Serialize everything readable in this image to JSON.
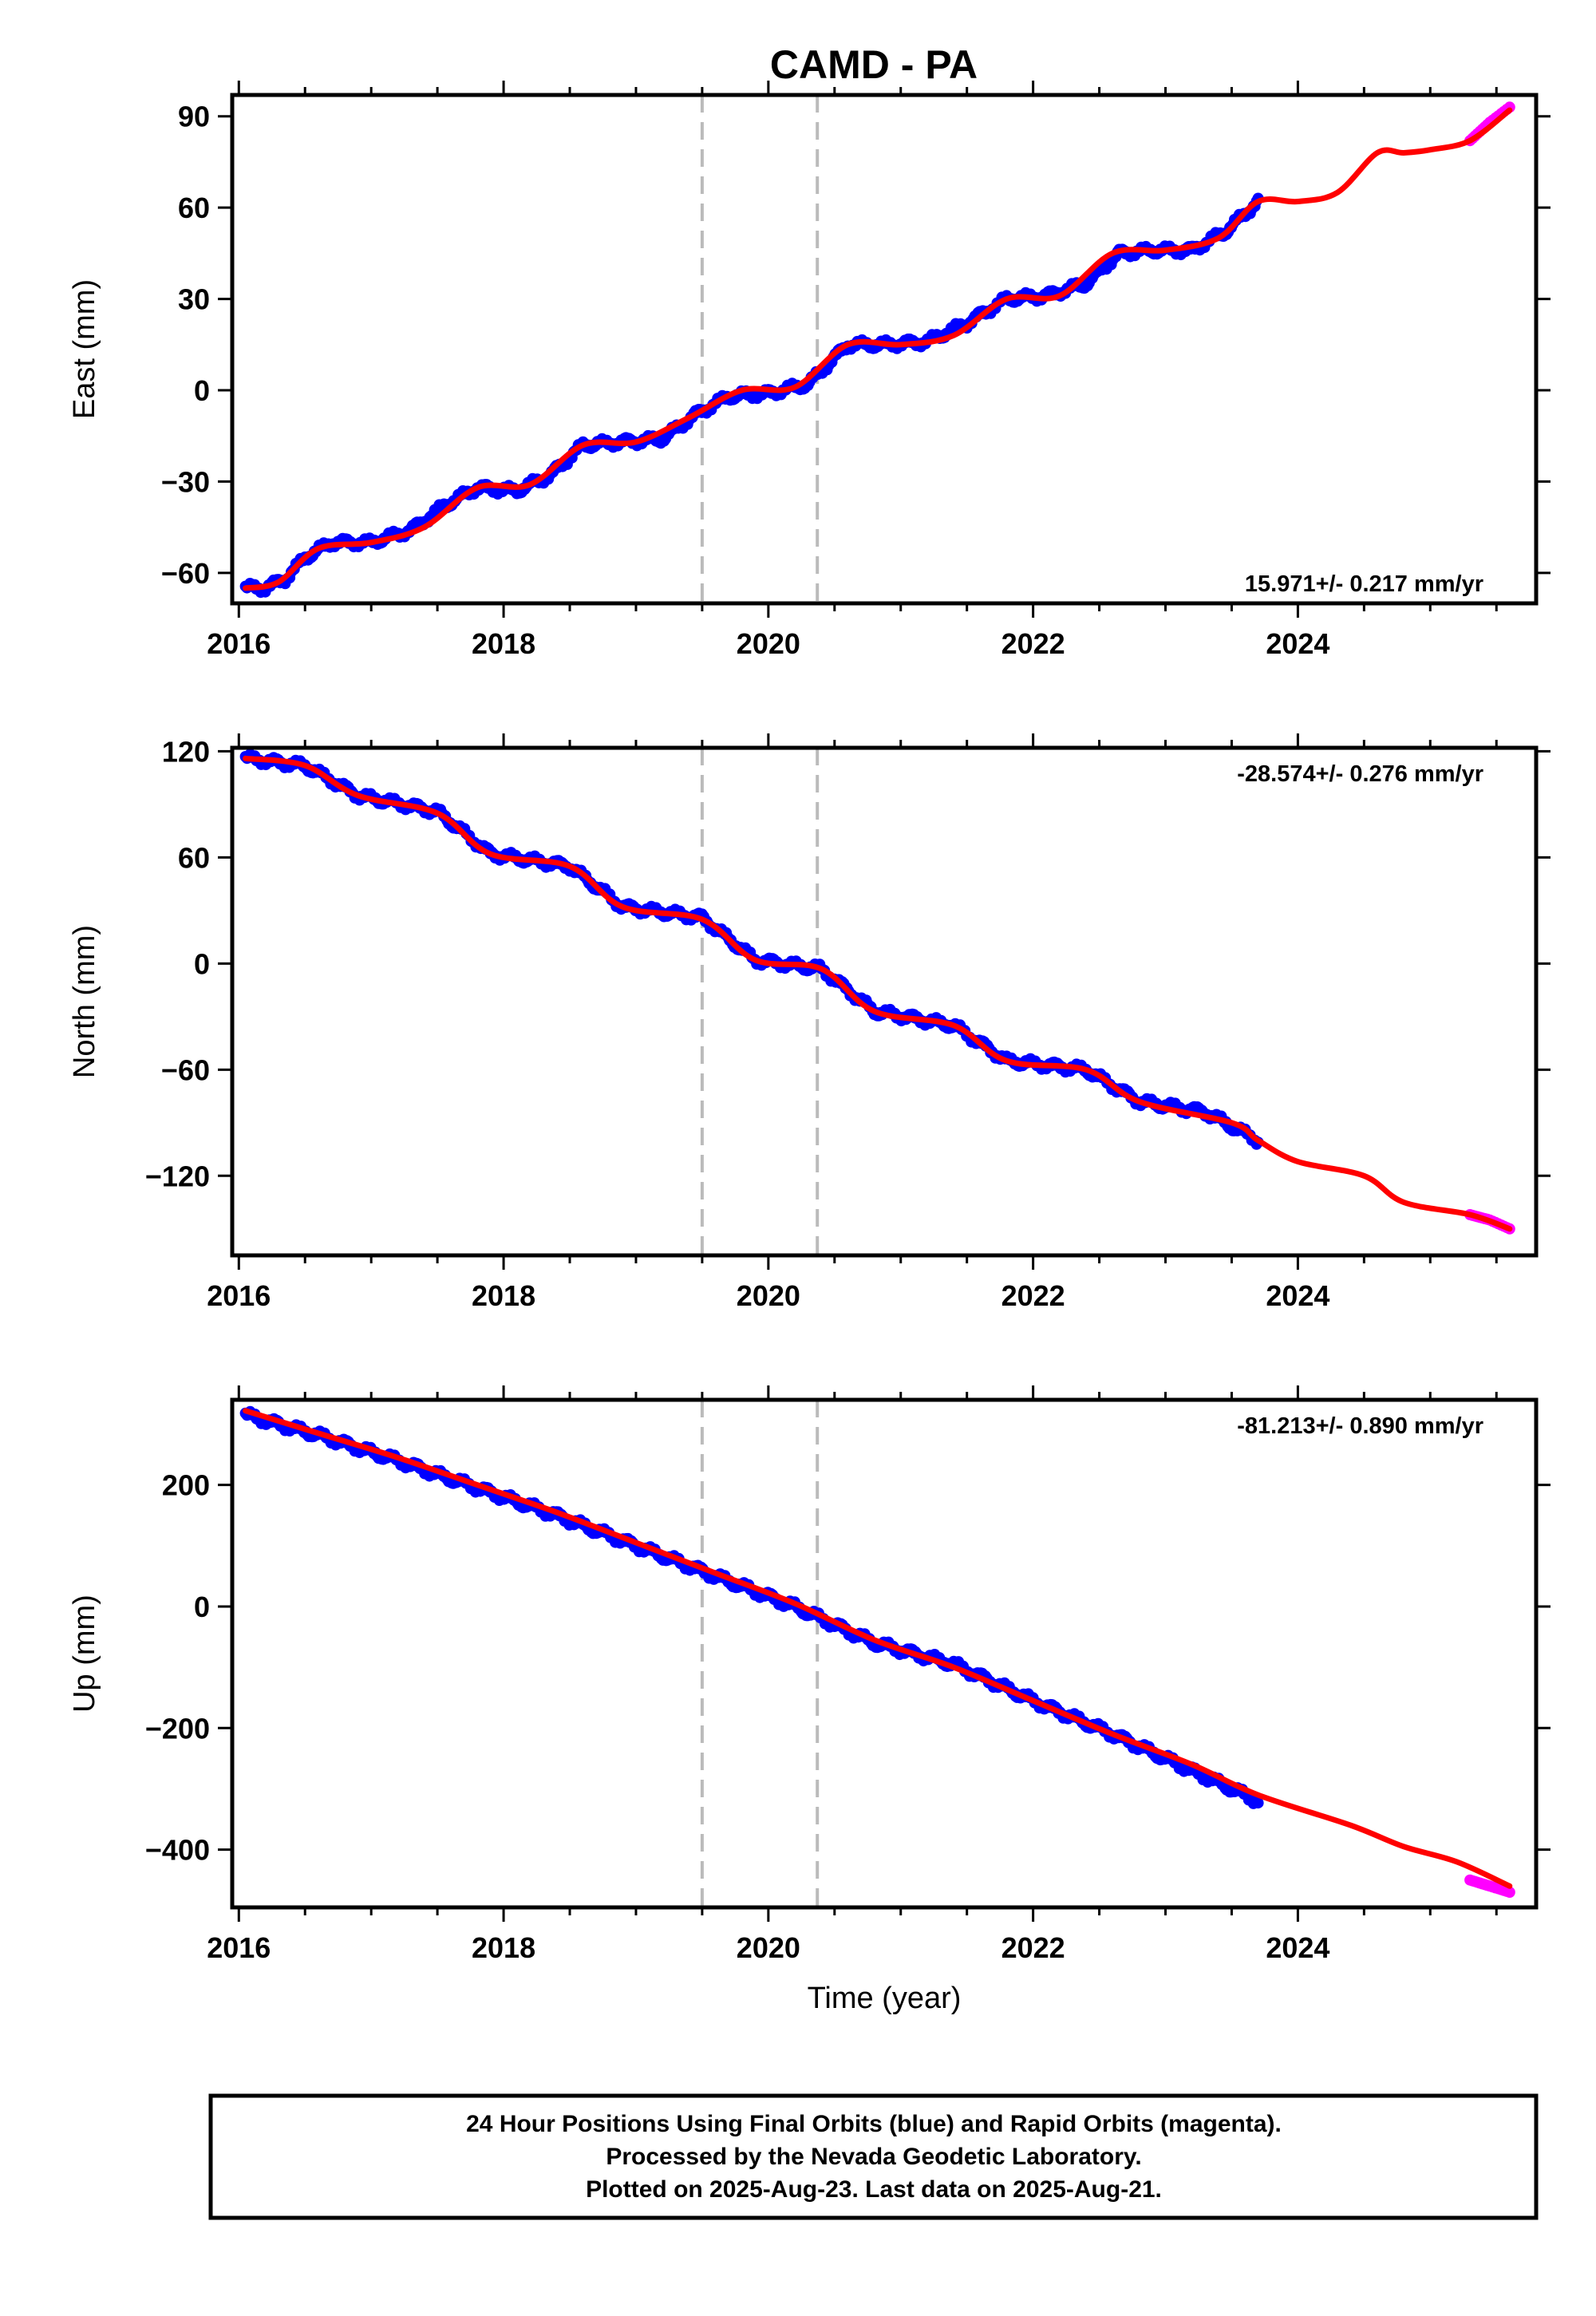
{
  "title": "CAMD - PA",
  "colors": {
    "final_orbits": "#0000ff",
    "rapid_orbits": "#ff00ff",
    "model": "#ff0000",
    "event_lines": "#bbbbbb"
  },
  "chart_data": [
    {
      "type": "scatter",
      "name": "east",
      "ylabel": "East (mm)",
      "xlabel": "",
      "rate": "15.971+/- 0.217 mm/yr",
      "rate_position": "bottom-right",
      "xlim": [
        2015.95,
        2025.8
      ],
      "ylim": [
        -70,
        97
      ],
      "x_ticks": [
        2016,
        2018,
        2020,
        2022,
        2024
      ],
      "y_ticks": [
        90,
        60,
        30,
        0,
        -30,
        -60
      ],
      "y_tick_labels": [
        "90",
        "60",
        "30",
        "0",
        "−30",
        "−60"
      ],
      "event_lines": [
        2019.5,
        2020.37
      ],
      "model_curve": {
        "x": [
          2016.05,
          2016.3,
          2016.6,
          2017.0,
          2017.4,
          2017.8,
          2018.2,
          2018.6,
          2019.0,
          2019.4,
          2019.8,
          2020.2,
          2020.6,
          2021.0,
          2021.4,
          2021.8,
          2022.2,
          2022.6,
          2023.0,
          2023.4,
          2023.7,
          2024.0,
          2024.3,
          2024.6,
          2024.8,
          2025.0,
          2025.3,
          2025.6
        ],
        "y": [
          -65,
          -63,
          -52,
          -50,
          -45,
          -32,
          -31,
          -18,
          -17,
          -9,
          0,
          1,
          15,
          15,
          18,
          30,
          31,
          45,
          46,
          50,
          62,
          62,
          65,
          78,
          78,
          79,
          82,
          92
        ]
      },
      "final_orbits": {
        "x": [
          2016.05,
          2016.2,
          2016.35,
          2016.5,
          2016.7,
          2017.0,
          2017.3,
          2017.55,
          2017.8,
          2018.1,
          2018.35,
          2018.6,
          2018.9,
          2019.2,
          2019.45,
          2019.7,
          2020.0,
          2020.3,
          2020.6,
          2020.9,
          2021.2,
          2021.5,
          2021.8,
          2022.1,
          2022.4,
          2022.65,
          2022.9,
          2023.2,
          2023.45,
          2023.7
        ],
        "y": [
          -65,
          -65,
          -62,
          -55,
          -50,
          -50,
          -46,
          -38,
          -32,
          -33,
          -28,
          -18,
          -17,
          -16,
          -8,
          -2,
          -1,
          2,
          15,
          15,
          16,
          22,
          30,
          31,
          35,
          45,
          46,
          46,
          52,
          62
        ]
      },
      "rapid_orbits": {
        "x": [
          2025.3,
          2025.45,
          2025.6
        ],
        "y": [
          82,
          88,
          93
        ]
      }
    },
    {
      "type": "scatter",
      "name": "north",
      "ylabel": "North (mm)",
      "xlabel": "",
      "rate": "-28.574+/- 0.276 mm/yr",
      "rate_position": "top-right",
      "xlim": [
        2015.95,
        2025.8
      ],
      "ylim": [
        -165,
        122
      ],
      "x_ticks": [
        2016,
        2018,
        2020,
        2022,
        2024
      ],
      "y_ticks": [
        120,
        60,
        0,
        -60,
        -120
      ],
      "y_tick_labels": [
        "120",
        "60",
        "0",
        "−60",
        "−120"
      ],
      "event_lines": [
        2019.5,
        2020.37
      ],
      "model_curve": {
        "x": [
          2016.05,
          2016.5,
          2016.9,
          2017.5,
          2017.9,
          2018.5,
          2018.9,
          2019.5,
          2019.9,
          2020.4,
          2020.8,
          2021.4,
          2021.8,
          2022.4,
          2022.8,
          2023.5,
          2023.7,
          2024.0,
          2024.5,
          2024.8,
          2025.3,
          2025.6
        ],
        "y": [
          116,
          112,
          95,
          85,
          62,
          55,
          32,
          25,
          2,
          -3,
          -27,
          -35,
          -55,
          -60,
          -78,
          -90,
          -100,
          -112,
          -120,
          -135,
          -142,
          -150
        ]
      },
      "final_orbits": {
        "x": [
          2016.05,
          2016.5,
          2016.9,
          2017.5,
          2017.9,
          2018.5,
          2018.9,
          2019.5,
          2019.9,
          2020.4,
          2020.8,
          2021.4,
          2021.8,
          2022.4,
          2022.8,
          2023.3,
          2023.7
        ],
        "y": [
          116,
          112,
          95,
          86,
          62,
          55,
          32,
          26,
          2,
          -3,
          -27,
          -35,
          -55,
          -60,
          -78,
          -84,
          -100
        ]
      },
      "rapid_orbits": {
        "x": [
          2025.3,
          2025.45,
          2025.6
        ],
        "y": [
          -142,
          -145,
          -150
        ]
      }
    },
    {
      "type": "scatter",
      "name": "up",
      "ylabel": "Up (mm)",
      "xlabel": "Time (year)",
      "rate": "-81.213+/- 0.890 mm/yr",
      "rate_position": "top-right",
      "xlim": [
        2015.95,
        2025.8
      ],
      "ylim": [
        -495,
        340
      ],
      "x_ticks": [
        2016,
        2018,
        2020,
        2022,
        2024
      ],
      "y_ticks": [
        200,
        0,
        -200,
        -400
      ],
      "y_tick_labels": [
        "200",
        "0",
        "−200",
        "−400"
      ],
      "event_lines": [
        2019.5,
        2020.37
      ],
      "model_curve": {
        "x": [
          2016.05,
          2016.6,
          2017.2,
          2017.8,
          2018.4,
          2019.0,
          2019.6,
          2020.2,
          2020.8,
          2021.4,
          2022.0,
          2022.6,
          2023.2,
          2023.7,
          2024.4,
          2024.8,
          2025.2,
          2025.6
        ],
        "y": [
          322,
          285,
          245,
          200,
          155,
          105,
          55,
          5,
          -55,
          -100,
          -155,
          -210,
          -260,
          -310,
          -360,
          -395,
          -420,
          -460
        ]
      },
      "final_orbits": {
        "x": [
          2016.05,
          2016.6,
          2017.2,
          2017.8,
          2018.4,
          2019.0,
          2019.6,
          2020.2,
          2020.8,
          2021.4,
          2022.0,
          2022.6,
          2023.2,
          2023.7
        ],
        "y": [
          315,
          282,
          240,
          195,
          150,
          100,
          50,
          0,
          -60,
          -95,
          -155,
          -210,
          -270,
          -320
        ]
      },
      "rapid_orbits": {
        "x": [
          2025.3,
          2025.45,
          2025.6
        ],
        "y": [
          -450,
          -460,
          -470
        ]
      }
    }
  ],
  "caption": {
    "line1": "24 Hour Positions Using Final Orbits (blue) and Rapid Orbits (magenta).",
    "line2": "Processed by the Nevada Geodetic Laboratory.",
    "line3": "Plotted on 2025-Aug-23. Last data on 2025-Aug-21."
  }
}
